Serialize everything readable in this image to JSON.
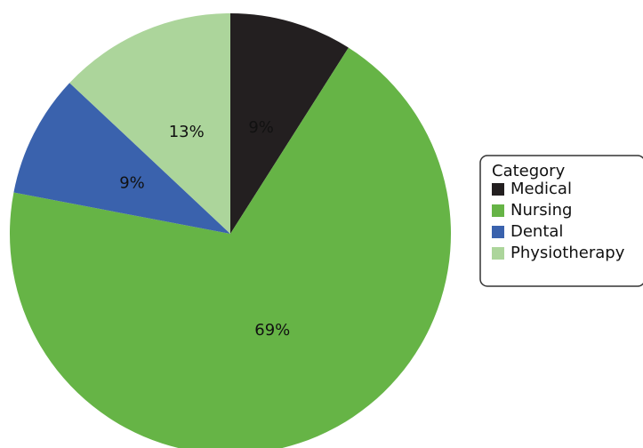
{
  "chart_data": {
    "type": "pie",
    "categories": [
      "Medical",
      "Nursing",
      "Dental",
      "Physiotherapy"
    ],
    "values": [
      9,
      69,
      9,
      13
    ],
    "labels": [
      "9%",
      "69%",
      "9%",
      "13%"
    ],
    "colors": [
      "#231f20",
      "#66b446",
      "#3a62ad",
      "#acd59b"
    ],
    "start_angle_deg": 0,
    "direction": "clockwise",
    "legend": {
      "title": "Category",
      "placement": "right",
      "entries": [
        "Medical",
        "Nursing",
        "Dental",
        "Physiotherapy"
      ]
    }
  }
}
